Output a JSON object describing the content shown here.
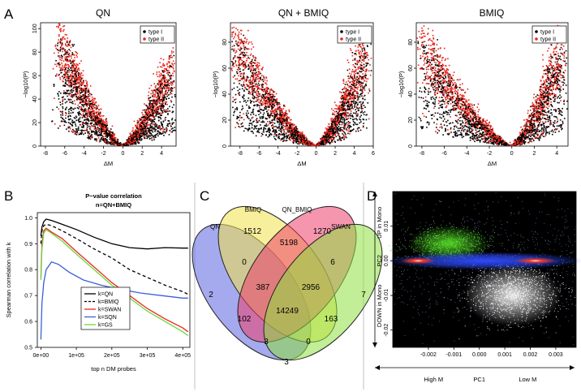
{
  "chart_data": [
    {
      "panel": "A",
      "type": "scatter",
      "subplots": [
        {
          "title": "QN",
          "xlabel": "ΔM",
          "ylabel": "−log10(P)",
          "xlim": [
            -8.5,
            5.5
          ],
          "ylim": [
            0,
            105
          ],
          "xticks": [
            -8,
            -6,
            -4,
            -2,
            0,
            2,
            4
          ],
          "yticks": [
            0,
            20,
            40,
            60,
            80,
            100
          ],
          "legend": [
            "type I",
            "type II"
          ],
          "series": [
            {
              "name": "type I",
              "color": "#000000",
              "description": "V-shaped cloud, black"
            },
            {
              "name": "type II",
              "color": "#e8261c",
              "description": "V-shaped cloud, red, mostly outer edge"
            }
          ],
          "v_shape": {
            "left_edge_dm": -6.5,
            "right_edge_dm": 5,
            "peak_left": 100,
            "peak_right": 78,
            "vertex": [
              0,
              0
            ]
          }
        },
        {
          "title": "QN + BMIQ",
          "xlabel": "ΔM",
          "ylabel": "−log10(P)",
          "xlim": [
            -9,
            6
          ],
          "ylim": [
            0,
            95
          ],
          "xticks": [
            -8,
            -6,
            -4,
            -2,
            0,
            2,
            4,
            6
          ],
          "yticks": [
            0,
            20,
            40,
            60,
            80
          ],
          "legend": [
            "type I",
            "type II"
          ],
          "series": [
            {
              "name": "type I",
              "color": "#000000"
            },
            {
              "name": "type II",
              "color": "#e8261c"
            }
          ],
          "v_shape": {
            "left_edge_dm": -8.5,
            "right_edge_dm": 5.2,
            "peak_left": 90,
            "peak_right": 85,
            "vertex": [
              0,
              0
            ]
          }
        },
        {
          "title": "BMIQ",
          "xlabel": "ΔM",
          "ylabel": "−log10(P)",
          "xlim": [
            -8.5,
            5
          ],
          "ylim": [
            0,
            95
          ],
          "xticks": [
            -8,
            -6,
            -4,
            -2,
            0,
            2,
            4
          ],
          "yticks": [
            0,
            20,
            40,
            60,
            80
          ],
          "legend": [
            "type I",
            "type II"
          ],
          "series": [
            {
              "name": "type I",
              "color": "#000000"
            },
            {
              "name": "type II",
              "color": "#e8261c"
            }
          ],
          "v_shape": {
            "left_edge_dm": -8,
            "right_edge_dm": 4.5,
            "peak_left": 88,
            "peak_right": 86,
            "vertex": [
              0,
              0
            ]
          }
        }
      ]
    },
    {
      "panel": "B",
      "type": "line",
      "title": "P−value correlation",
      "subtitle": "n=QN+BMIQ",
      "xlabel": "top n DM probes",
      "ylabel": "Spearman correlation with k",
      "xlim": [
        -10000,
        420000
      ],
      "ylim": [
        0.5,
        1.02
      ],
      "xticks": [
        0,
        100000,
        200000,
        300000,
        400000
      ],
      "xtick_labels": [
        "0e+00",
        "1e+05",
        "2e+05",
        "3e+05",
        "4e+05"
      ],
      "yticks": [
        0.5,
        0.6,
        0.7,
        0.8,
        0.9,
        1.0
      ],
      "ytick_labels": [
        "0.5",
        "0.6",
        "0.7",
        "0.8",
        "0.9",
        "1.0"
      ],
      "series": [
        {
          "name": "k=QN",
          "color": "#000000",
          "dash": "solid",
          "x": [
            0,
            3000,
            8000,
            15000,
            30000,
            60000,
            100000,
            150000,
            200000,
            250000,
            300000,
            350000,
            400000,
            415000
          ],
          "y": [
            0.93,
            0.965,
            0.985,
            0.995,
            0.99,
            0.975,
            0.955,
            0.925,
            0.9,
            0.885,
            0.88,
            0.885,
            0.883,
            0.883
          ]
        },
        {
          "name": "k=BMIQ",
          "color": "#000000",
          "dash": "dashed",
          "x": [
            0,
            3000,
            8000,
            15000,
            30000,
            60000,
            100000,
            150000,
            200000,
            250000,
            300000,
            350000,
            400000,
            415000
          ],
          "y": [
            0.9,
            0.95,
            0.97,
            0.975,
            0.97,
            0.95,
            0.92,
            0.88,
            0.845,
            0.8,
            0.77,
            0.74,
            0.715,
            0.705
          ]
        },
        {
          "name": "k=SWAN",
          "color": "#e8261c",
          "dash": "solid",
          "x": [
            0,
            3000,
            8000,
            15000,
            30000,
            60000,
            100000,
            150000,
            200000,
            250000,
            300000,
            350000,
            400000,
            415000
          ],
          "y": [
            0.77,
            0.9,
            0.95,
            0.96,
            0.945,
            0.92,
            0.87,
            0.81,
            0.75,
            0.7,
            0.65,
            0.61,
            0.575,
            0.56
          ]
        },
        {
          "name": "k=SQN",
          "color": "#3a5fd9",
          "dash": "solid",
          "x": [
            0,
            3000,
            8000,
            15000,
            30000,
            50000,
            80000,
            120000,
            170000,
            220000,
            280000,
            340000,
            400000,
            415000
          ],
          "y": [
            0.53,
            0.67,
            0.75,
            0.8,
            0.83,
            0.82,
            0.79,
            0.76,
            0.74,
            0.725,
            0.71,
            0.7,
            0.69,
            0.69
          ]
        },
        {
          "name": "k=GS",
          "color": "#6cd83c",
          "dash": "solid",
          "x": [
            0,
            3000,
            8000,
            15000,
            30000,
            60000,
            100000,
            150000,
            200000,
            250000,
            300000,
            350000,
            400000,
            415000
          ],
          "y": [
            0.76,
            0.88,
            0.94,
            0.955,
            0.94,
            0.91,
            0.86,
            0.8,
            0.74,
            0.69,
            0.64,
            0.6,
            0.56,
            0.545
          ]
        }
      ],
      "legend": [
        "k=QN",
        "k=BMIQ",
        "k=SWAN",
        "k=SQN",
        "k=GS"
      ],
      "legend_position": "bottom-left"
    },
    {
      "panel": "C",
      "type": "venn",
      "sets": [
        {
          "name": "QN",
          "color": "#5b62e0"
        },
        {
          "name": "BMIQ",
          "color": "#f2e24a"
        },
        {
          "name": "QN_BMIQ",
          "color": "#ec3f6c"
        },
        {
          "name": "SWAN",
          "color": "#8ee040"
        }
      ],
      "regions": [
        {
          "sets": [
            "QN"
          ],
          "value": "2"
        },
        {
          "sets": [
            "BMIQ"
          ],
          "value": "1512"
        },
        {
          "sets": [
            "QN_BMIQ"
          ],
          "value": "1270"
        },
        {
          "sets": [
            "SWAN"
          ],
          "value": "7"
        },
        {
          "sets": [
            "QN",
            "BMIQ"
          ],
          "value": "0"
        },
        {
          "sets": [
            "BMIQ",
            "QN_BMIQ"
          ],
          "value": "5198"
        },
        {
          "sets": [
            "QN_BMIQ",
            "SWAN"
          ],
          "value": "6"
        },
        {
          "sets": [
            "QN",
            "BMIQ",
            "QN_BMIQ"
          ],
          "value": "387"
        },
        {
          "sets": [
            "BMIQ",
            "QN_BMIQ",
            "SWAN"
          ],
          "value": "2956"
        },
        {
          "sets": [
            "QN",
            "BMIQ",
            "QN_BMIQ",
            "SWAN"
          ],
          "value": "14249"
        },
        {
          "sets": [
            "QN",
            "QN_BMIQ"
          ],
          "value": "102"
        },
        {
          "sets": [
            "BMIQ",
            "SWAN"
          ],
          "value": "163"
        },
        {
          "sets": [
            "QN",
            "QN_BMIQ",
            "SWAN"
          ],
          "value": "3"
        },
        {
          "sets": [
            "QN",
            "BMIQ",
            "SWAN"
          ],
          "value": "0"
        },
        {
          "sets": [
            "QN",
            "SWAN"
          ],
          "value": "3"
        }
      ]
    },
    {
      "panel": "D",
      "type": "scatter",
      "description": "density scatter, black background; central blue/red band at PC2≈0, green cloud upper left, white cloud lower right",
      "xlabel": "PC1",
      "ylabel": "PC2",
      "xlim": [
        -0.0034,
        0.0038
      ],
      "ylim": [
        -0.025,
        0.02
      ],
      "xticks": [
        -0.002,
        -0.001,
        0.0,
        0.001,
        0.002,
        0.003
      ],
      "xtick_labels": [
        "-0.002",
        "-0.001",
        "0.000",
        "0.001",
        "0.002",
        "0.003"
      ],
      "yticks": [
        -0.02,
        -0.01,
        0.0,
        0.01
      ],
      "ytick_labels": [
        "-0.02",
        "-0.01",
        "0.00",
        "0.01"
      ],
      "annotations": {
        "up": "UP in Mono",
        "down": "DOWN in Mono",
        "left": "High M",
        "right": "Low M"
      },
      "colors": {
        "background": "#000000",
        "band": "#2f4cff",
        "core": "#ff3a1a",
        "up_cloud": "#57e02a",
        "down_cloud": "#ffffff"
      }
    }
  ],
  "panel_labels": [
    "A",
    "B",
    "C",
    "D"
  ]
}
